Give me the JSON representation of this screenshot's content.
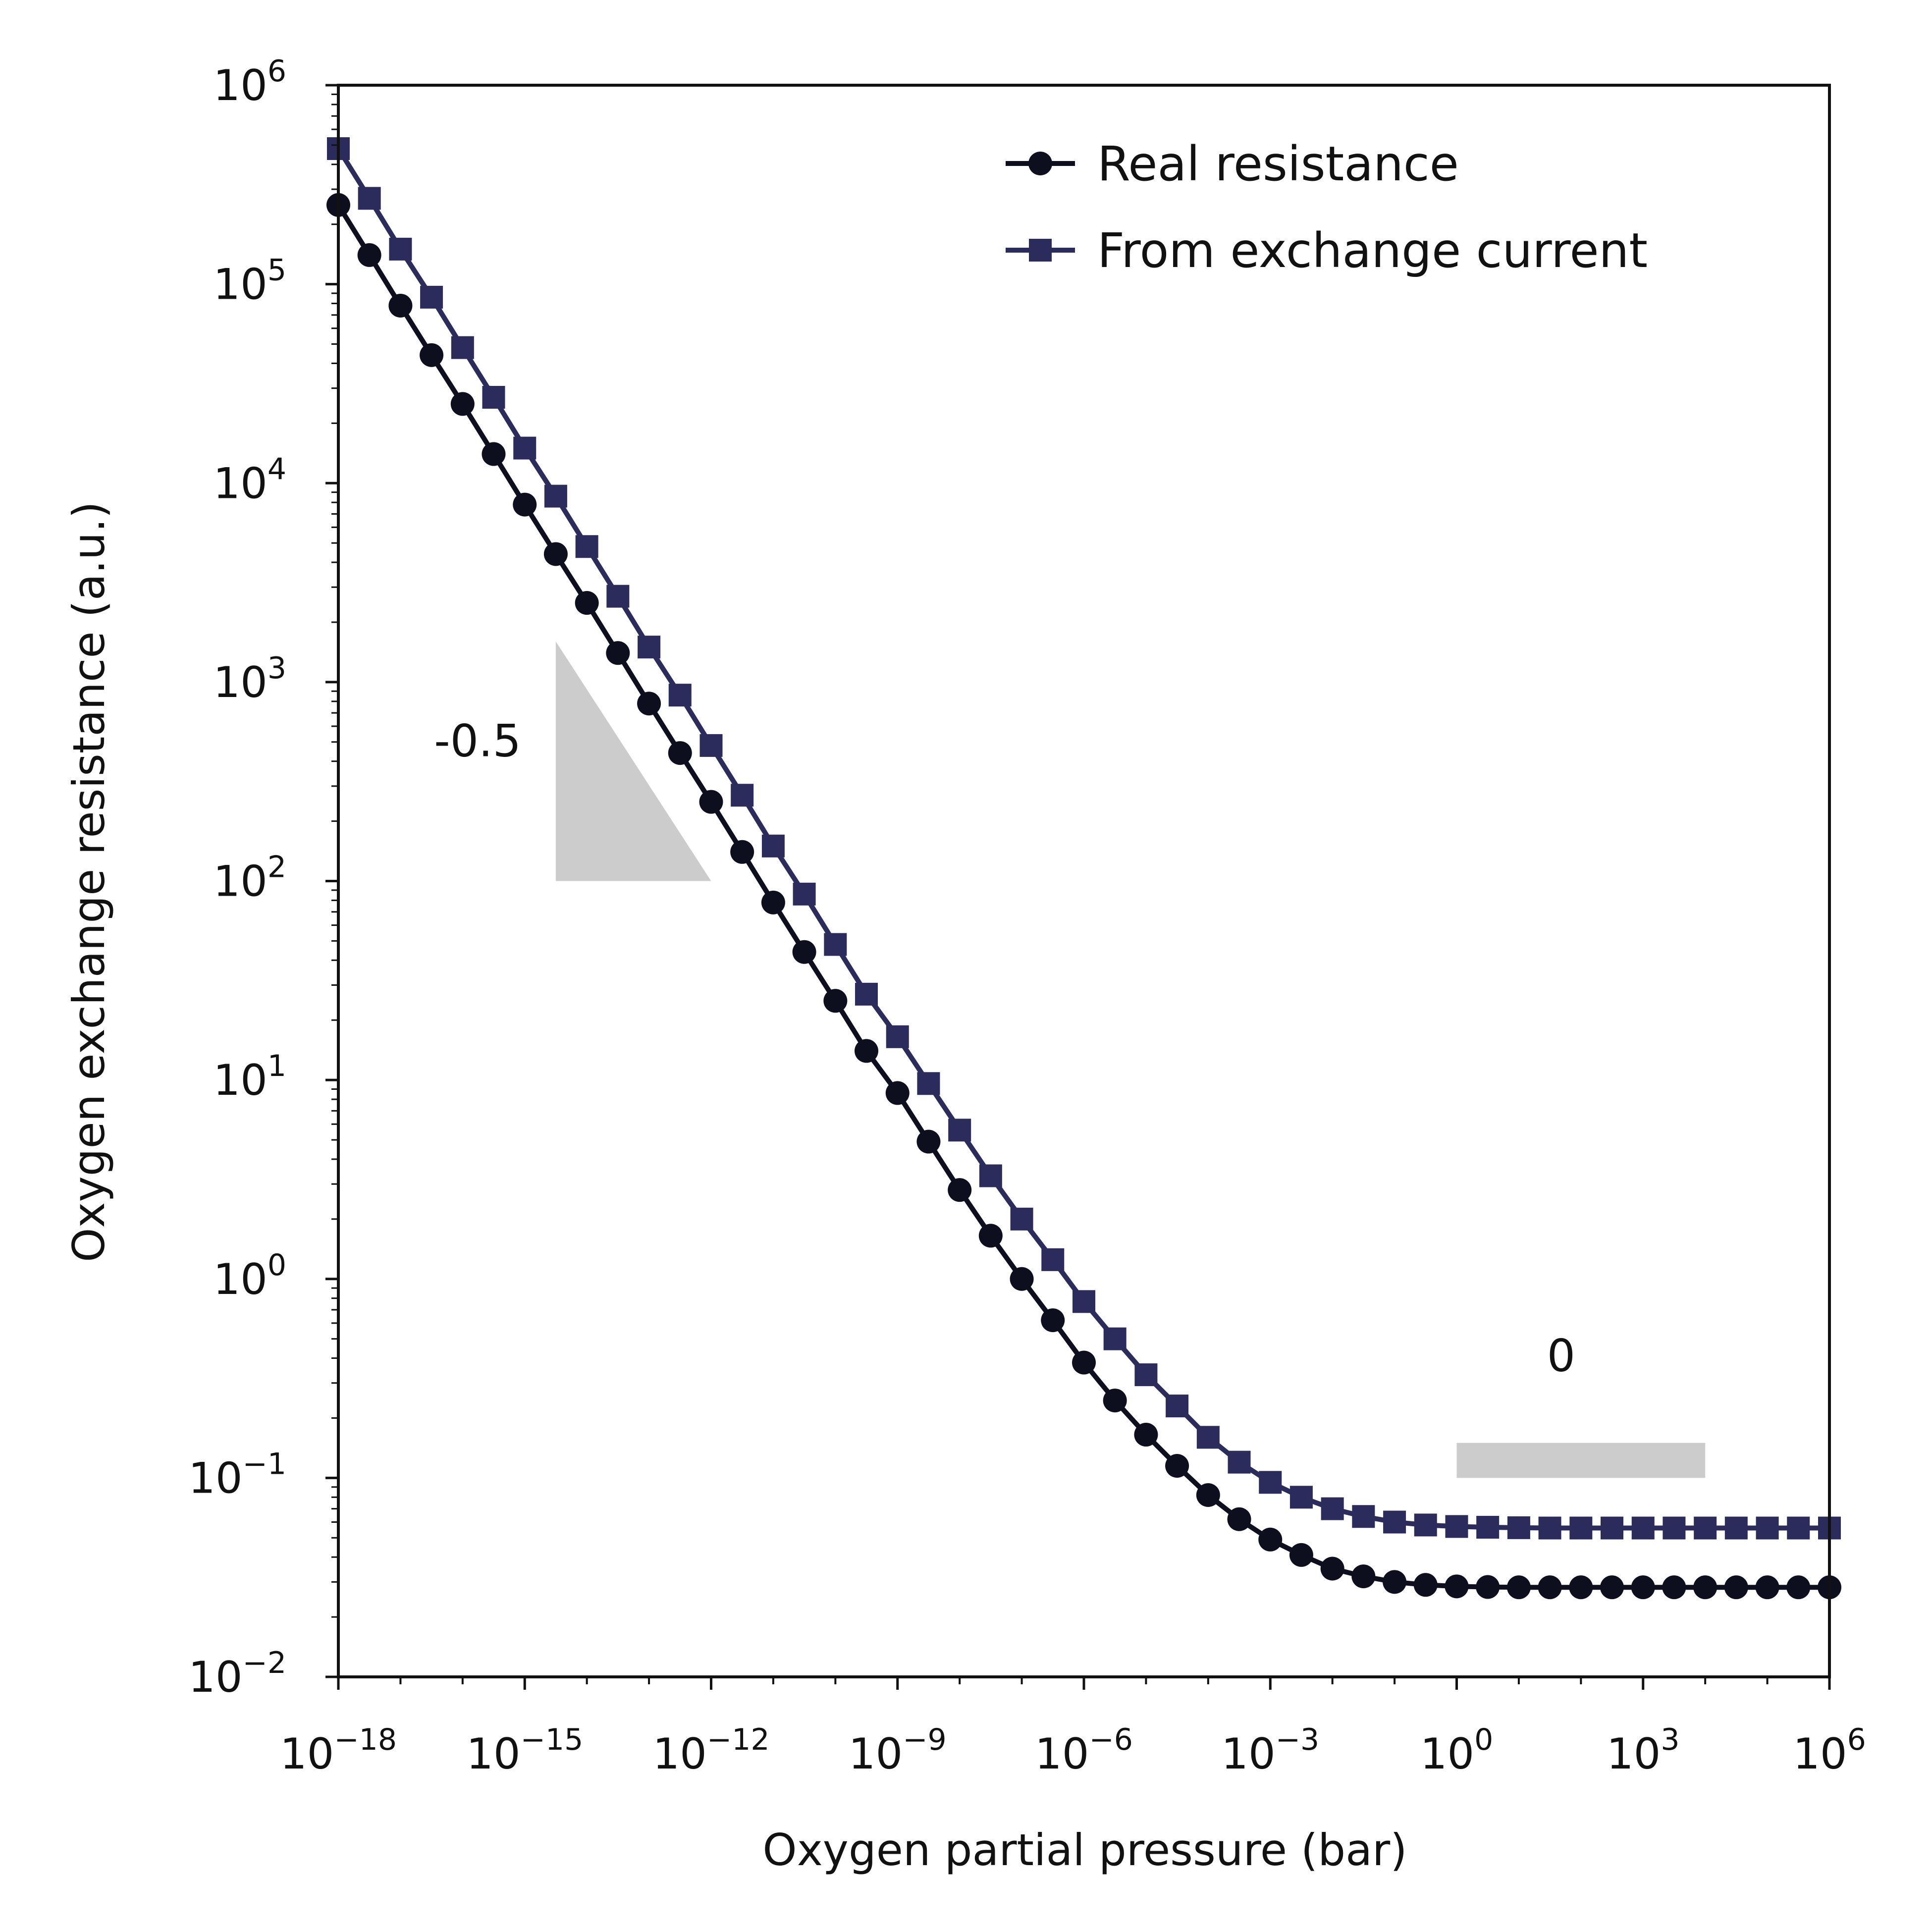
{
  "chart_data": {
    "type": "line",
    "xlabel": "Oxygen partial pressure (bar)",
    "ylabel": "Oxygen exchange resistance (a.u.)",
    "xscale": "log",
    "yscale": "log",
    "xlim": [
      1e-18,
      1000000.0
    ],
    "ylim": [
      0.01,
      1000000.0
    ],
    "xticks": [
      {
        "base": "10",
        "exp": "−18",
        "value": 1e-18
      },
      {
        "base": "10",
        "exp": "−15",
        "value": 1e-15
      },
      {
        "base": "10",
        "exp": "−12",
        "value": 1e-12
      },
      {
        "base": "10",
        "exp": "−9",
        "value": 1e-09
      },
      {
        "base": "10",
        "exp": "−6",
        "value": 1e-06
      },
      {
        "base": "10",
        "exp": "−3",
        "value": 0.001
      },
      {
        "base": "10",
        "exp": "0",
        "value": 1
      },
      {
        "base": "10",
        "exp": "3",
        "value": 1000.0
      },
      {
        "base": "10",
        "exp": "6",
        "value": 1000000.0
      }
    ],
    "yticks": [
      {
        "base": "10",
        "exp": "−2",
        "value": 0.01
      },
      {
        "base": "10",
        "exp": "−1",
        "value": 0.1
      },
      {
        "base": "10",
        "exp": "0",
        "value": 1
      },
      {
        "base": "10",
        "exp": "1",
        "value": 10
      },
      {
        "base": "10",
        "exp": "2",
        "value": 100
      },
      {
        "base": "10",
        "exp": "3",
        "value": 1000
      },
      {
        "base": "10",
        "exp": "4",
        "value": 10000
      },
      {
        "base": "10",
        "exp": "5",
        "value": 100000
      },
      {
        "base": "10",
        "exp": "6",
        "value": 1000000
      }
    ],
    "legend_position": "upper-right",
    "grid": false,
    "series": [
      {
        "name": "Real resistance",
        "marker": "circle",
        "color": "#0d0f1e",
        "x": [
          1e-18,
          3.16e-18,
          1e-17,
          3.16e-17,
          1e-16,
          3.16e-16,
          1e-15,
          3.16e-15,
          1e-14,
          3.16e-14,
          1e-13,
          3.16e-13,
          1e-12,
          3.16e-12,
          1e-11,
          3.16e-11,
          1e-10,
          3.16e-10,
          1e-09,
          3.16e-09,
          1e-08,
          3.16e-08,
          1e-07,
          3.16e-07,
          1e-06,
          3.16e-06,
          1e-05,
          3.16e-05,
          0.0001,
          0.000316,
          0.001,
          0.00316,
          0.01,
          0.0316,
          0.1,
          0.316,
          1,
          3.16,
          10,
          31.6,
          100,
          316,
          1000,
          3160,
          10000,
          31600,
          100000,
          316000,
          1000000
        ],
        "y": [
          250000,
          140000,
          78000,
          44000,
          25000,
          14000,
          7800,
          4400,
          2500,
          1400,
          780,
          440,
          250,
          140,
          78,
          44,
          25,
          14,
          8.6,
          4.9,
          2.8,
          1.65,
          1.0,
          0.62,
          0.38,
          0.245,
          0.165,
          0.115,
          0.082,
          0.062,
          0.049,
          0.041,
          0.035,
          0.032,
          0.03,
          0.029,
          0.0285,
          0.0283,
          0.0282,
          0.0282,
          0.0282,
          0.0282,
          0.0282,
          0.0282,
          0.0282,
          0.0282,
          0.0282,
          0.0282,
          0.0282
        ]
      },
      {
        "name": "From exchange current",
        "marker": "square",
        "color": "#2c2c5c",
        "x": [
          1e-18,
          3.16e-18,
          1e-17,
          3.16e-17,
          1e-16,
          3.16e-16,
          1e-15,
          3.16e-15,
          1e-14,
          3.16e-14,
          1e-13,
          3.16e-13,
          1e-12,
          3.16e-12,
          1e-11,
          3.16e-11,
          1e-10,
          3.16e-10,
          1e-09,
          3.16e-09,
          1e-08,
          3.16e-08,
          1e-07,
          3.16e-07,
          1e-06,
          3.16e-06,
          1e-05,
          3.16e-05,
          0.0001,
          0.000316,
          0.001,
          0.00316,
          0.01,
          0.0316,
          0.1,
          0.316,
          1,
          3.16,
          10,
          31.6,
          100,
          316,
          1000,
          3160,
          10000,
          31600,
          100000,
          316000,
          1000000
        ],
        "y": [
          480000,
          270000,
          150000,
          86000,
          48000,
          27000,
          15000,
          8600,
          4800,
          2700,
          1500,
          860,
          480,
          270,
          150,
          86,
          48,
          27,
          16.5,
          9.6,
          5.6,
          3.3,
          2.0,
          1.25,
          0.77,
          0.5,
          0.33,
          0.23,
          0.16,
          0.12,
          0.095,
          0.08,
          0.07,
          0.064,
          0.06,
          0.058,
          0.057,
          0.0565,
          0.0562,
          0.056,
          0.056,
          0.056,
          0.056,
          0.056,
          0.056,
          0.056,
          0.056,
          0.056,
          0.056
        ]
      }
    ],
    "annotations": [
      {
        "text": "-0.5",
        "shape": "slope-triangle",
        "x": [
          3.16e-15,
          1e-12
        ],
        "y": [
          100,
          1600
        ]
      },
      {
        "text": "0",
        "shape": "flat-bar",
        "x": [
          1,
          10000
        ],
        "y": [
          0.1,
          0.15
        ]
      }
    ]
  }
}
